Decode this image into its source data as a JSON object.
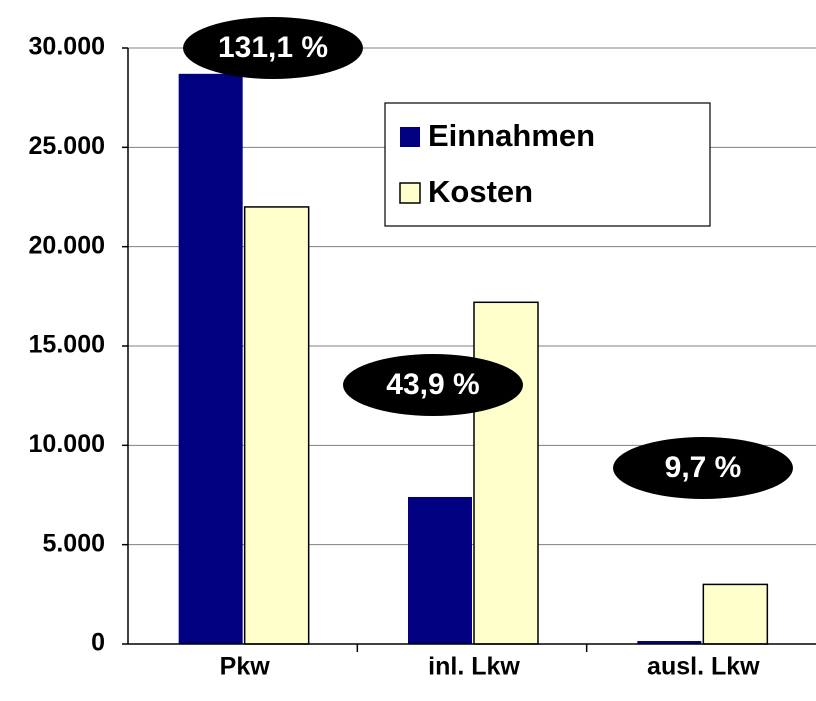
{
  "chart_data": {
    "type": "bar",
    "categories": [
      "Pkw",
      "inl. Lkw",
      "ausl. Lkw"
    ],
    "series": [
      {
        "name": "Einnahmen",
        "color": "#000080",
        "values": [
          28700,
          7400,
          150
        ]
      },
      {
        "name": "Kosten",
        "color": "#ffffcc",
        "values": [
          22000,
          17200,
          3000
        ]
      }
    ],
    "annotations": [
      "131,1 %",
      "43,9 %",
      "9,7 %"
    ],
    "ylim": [
      0,
      30000
    ],
    "yticks": [
      0,
      {
        "value": 5000,
        "label": "5.000"
      },
      {
        "value": 10000,
        "label": "10.000"
      },
      {
        "value": 15000,
        "label": "15.000"
      },
      {
        "value": 20000,
        "label": "20.000"
      },
      {
        "value": 25000,
        "label": "25.000"
      },
      {
        "value": 30000,
        "label": "30.000"
      }
    ],
    "grid": true
  }
}
